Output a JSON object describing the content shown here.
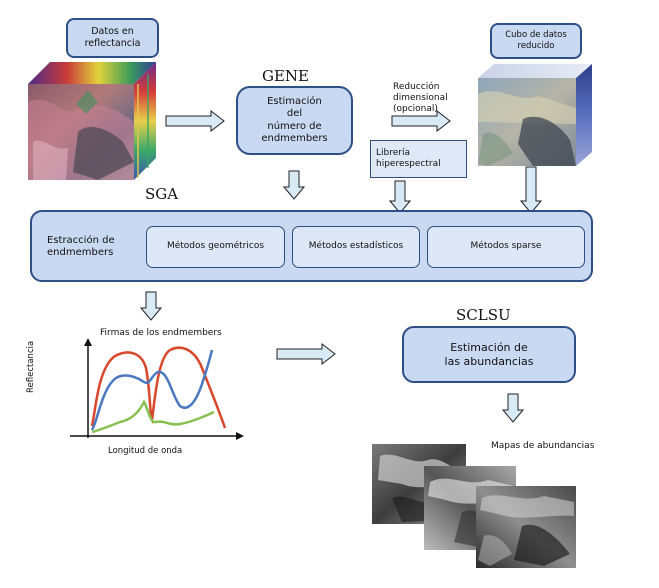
{
  "boxes": {
    "datos": "Datos en\nreflectancia",
    "cubo": "Cubo de datos\nreducido",
    "gene_box": "Estimación\ndel\nnúmero de\nendmembers",
    "reduccion": "Reducción\ndimensional\n(opcional)",
    "libreria": "Librería\nhiperespectral",
    "estraccion": "Estracción de\nendmembers",
    "metodos_geom": "Métodos geométricos",
    "metodos_est": "Métodos estadísticos",
    "metodos_sparse": "Métodos sparse",
    "abundancias": "Estimación de\nlas abundancias",
    "mapas": "Mapas de abundancias"
  },
  "labels": {
    "gene": "GENE",
    "sga": "SGA",
    "sclsu": "SCLSU"
  },
  "plot": {
    "title": "Firmas de los endmembers",
    "ylabel": "Reflectancia",
    "xlabel": "Longitud de onda"
  },
  "colors": {
    "box_fill": "#c9d9f1",
    "box_border": "#2d4f86",
    "arrow_fill": "#d8eaf6",
    "red": "#d9472b",
    "blue": "#4a78c2",
    "green": "#86c152"
  }
}
